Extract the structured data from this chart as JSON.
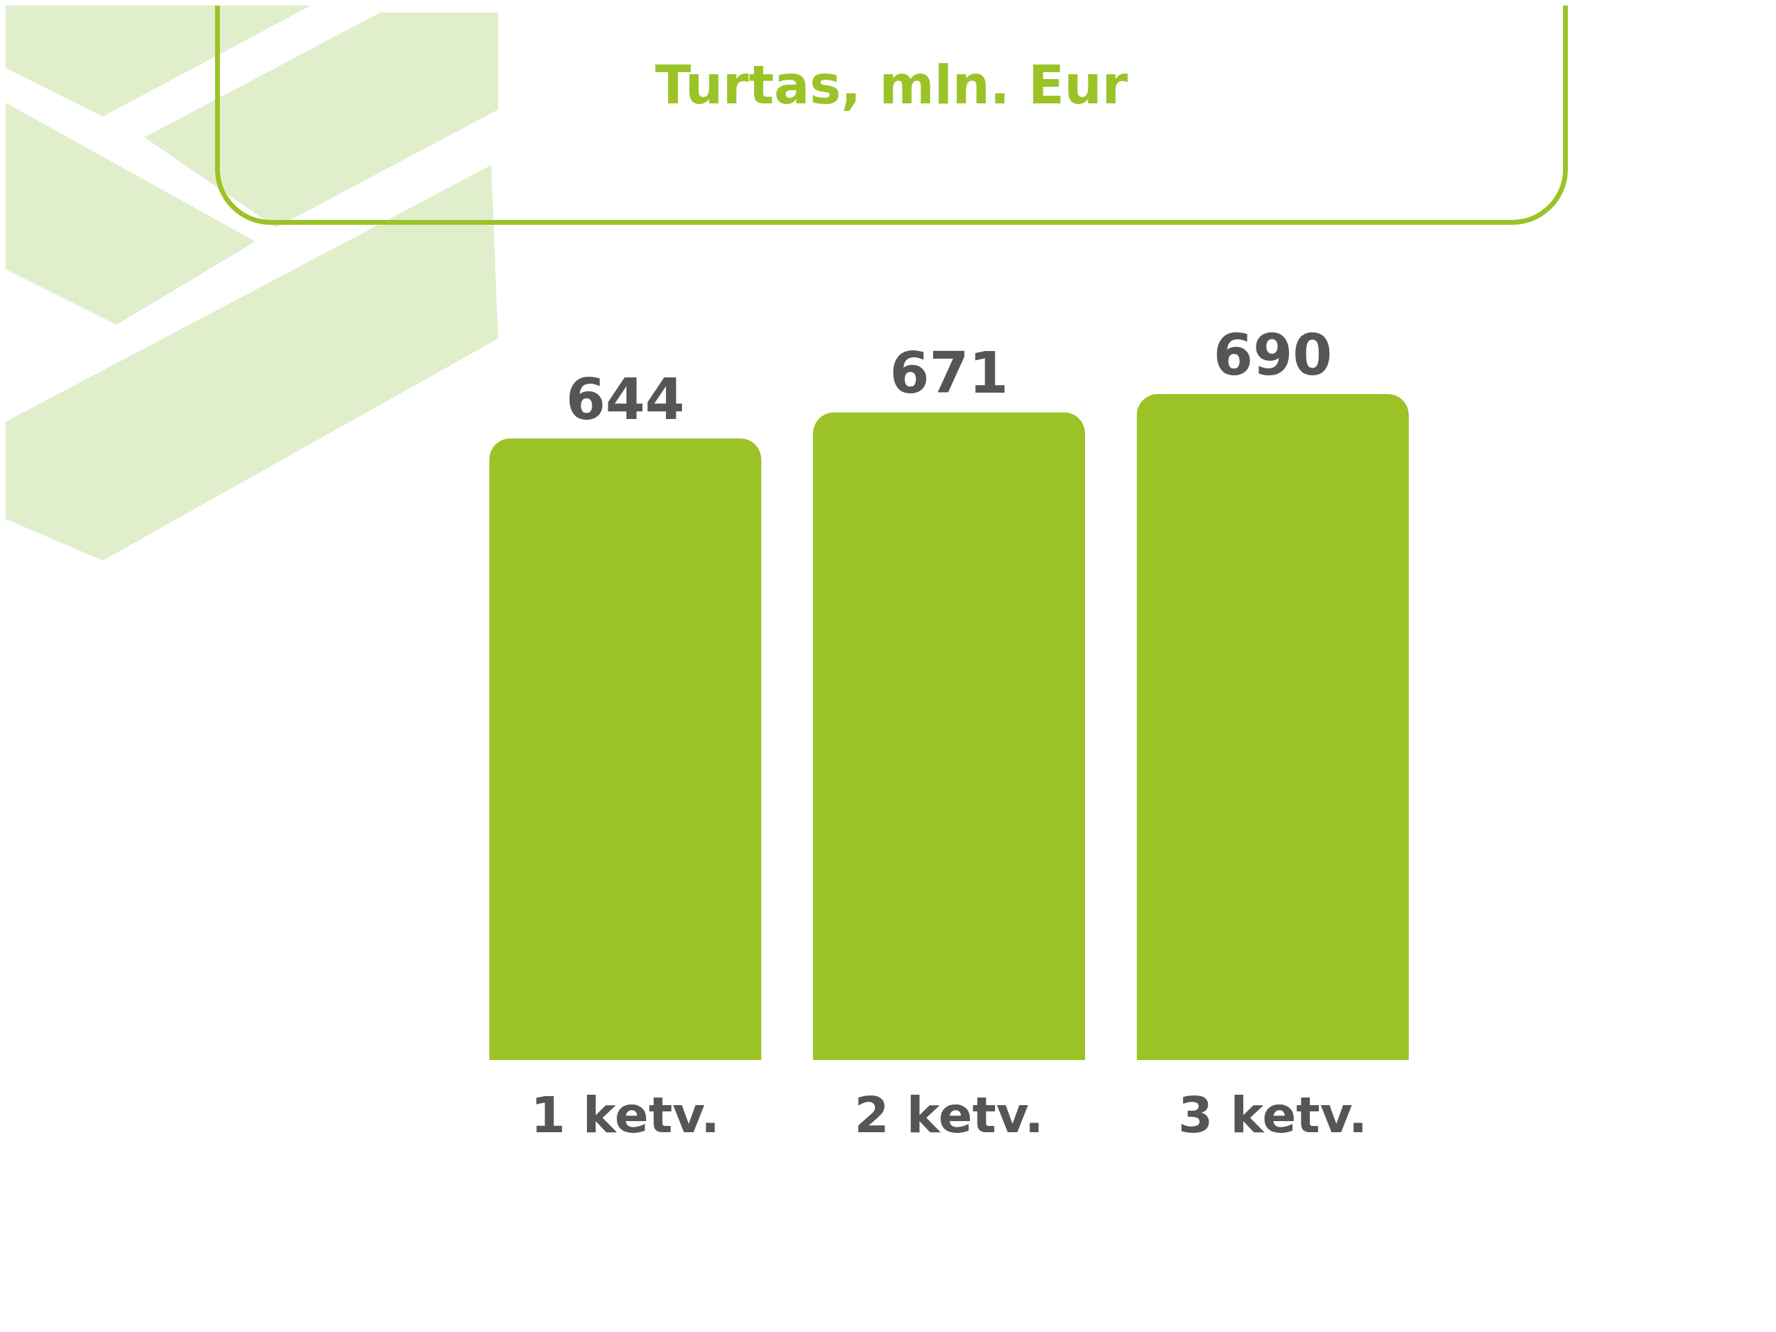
{
  "chart_data": {
    "type": "bar",
    "title": "Turtas, mln. Eur",
    "categories": [
      "1 ketv.",
      "2 ketv.",
      "3 ketv."
    ],
    "values": [
      644,
      671,
      690
    ],
    "color": "#9bc328",
    "data_labels": true
  }
}
